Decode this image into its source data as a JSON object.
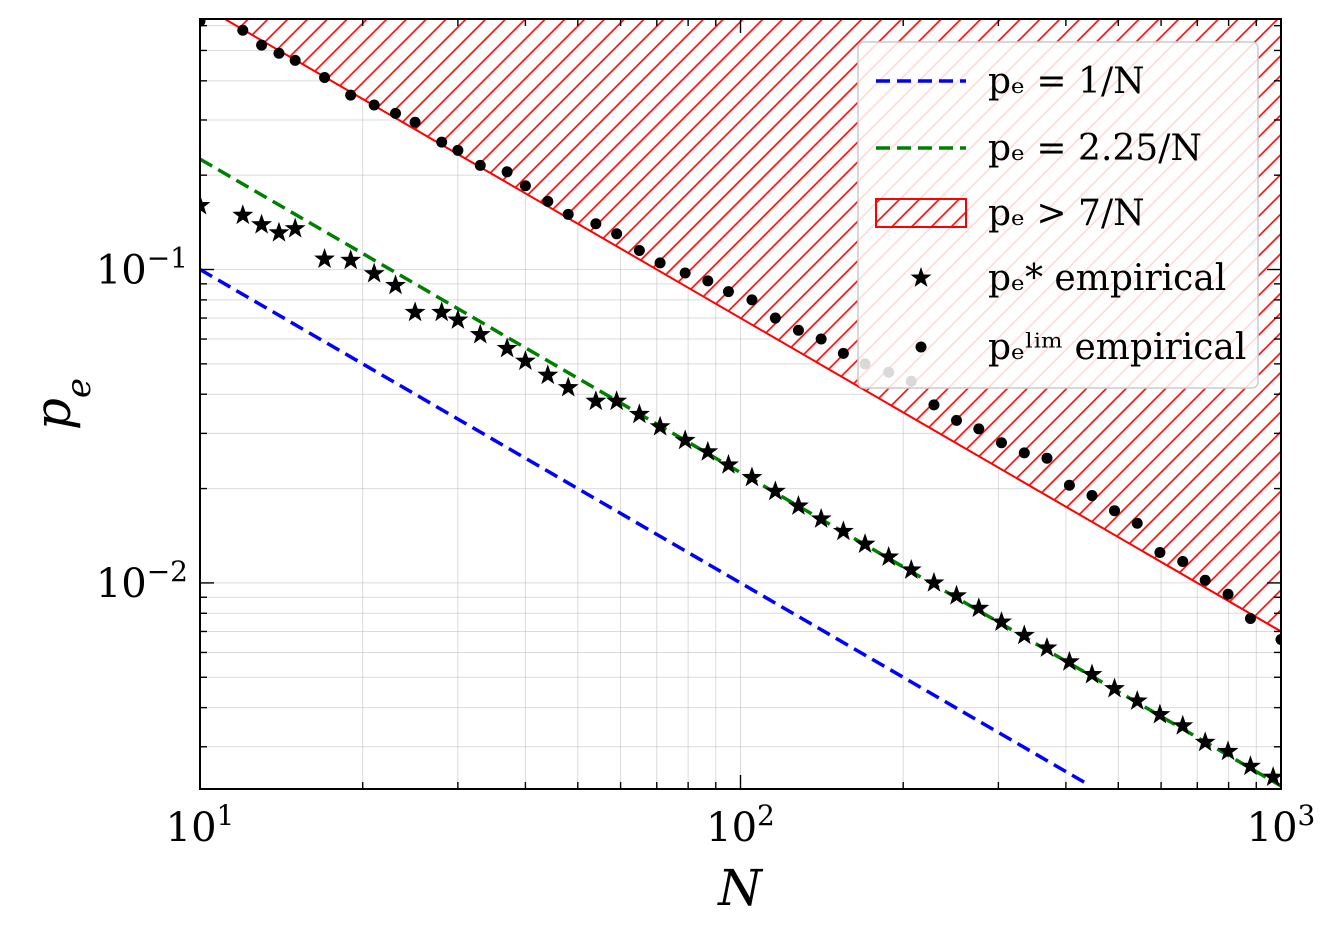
{
  "chart_data": {
    "type": "scatter",
    "scale": {
      "x": "log",
      "y": "log"
    },
    "xlabel": "N",
    "ylabel": "p_e",
    "xlim": [
      10,
      1000
    ],
    "ylim": [
      0.0022,
      0.63
    ],
    "grid": true,
    "legend_position": "top-right",
    "x_ticks": [
      {
        "value": 10,
        "base": "10",
        "exp": "1"
      },
      {
        "value": 100,
        "base": "10",
        "exp": "2"
      },
      {
        "value": 1000,
        "base": "10",
        "exp": "3"
      }
    ],
    "y_ticks": [
      {
        "value": 0.1,
        "base": "10",
        "exp": "−1"
      },
      {
        "value": 0.01,
        "base": "10",
        "exp": "−2"
      }
    ],
    "lines": [
      {
        "name": "p_e = 1/N",
        "label": "pₑ = 1/N",
        "coef": 1,
        "color": "#0000ff",
        "style": "dashed",
        "x_max": 440
      },
      {
        "name": "p_e = 2.25/N",
        "label": "pₑ = 2.25/N",
        "coef": 2.25,
        "color": "#008000",
        "style": "dashed"
      }
    ],
    "region": {
      "name": "p_e > 7/N",
      "label": "pₑ > 7/N",
      "coef": 7,
      "color": "#ff0000",
      "hatch": "diagonal"
    },
    "series": [
      {
        "name": "p_e^* empirical",
        "label": "pₑ* empirical",
        "marker": "star",
        "color": "#000000",
        "x": [
          10,
          12,
          13,
          14,
          15,
          17,
          19,
          21,
          23,
          25,
          28,
          30,
          33,
          37,
          40,
          44,
          48,
          54,
          59,
          65,
          71,
          79,
          87,
          95,
          105,
          116,
          128,
          141,
          155,
          170,
          188,
          207,
          228,
          251,
          276,
          304,
          335,
          369,
          406,
          447,
          492,
          542,
          597,
          658,
          724,
          798,
          878,
          967
        ],
        "y": [
          0.16,
          0.149,
          0.139,
          0.131,
          0.135,
          0.108,
          0.107,
          0.097,
          0.089,
          0.073,
          0.073,
          0.069,
          0.062,
          0.056,
          0.051,
          0.046,
          0.042,
          0.038,
          0.038,
          0.0345,
          0.0315,
          0.0285,
          0.0262,
          0.0238,
          0.0217,
          0.0196,
          0.0176,
          0.016,
          0.0146,
          0.0133,
          0.0121,
          0.011,
          0.01,
          0.0091,
          0.0083,
          0.0075,
          0.0068,
          0.0062,
          0.0056,
          0.0051,
          0.0046,
          0.0042,
          0.0038,
          0.0035,
          0.0031,
          0.0029,
          0.0026,
          0.0024
        ]
      },
      {
        "name": "p_e^lim empirical",
        "label": "pₑˡⁱᵐ empirical",
        "marker": "circle",
        "color": "#000000",
        "x": [
          10,
          12,
          13,
          14,
          15,
          17,
          19,
          21,
          23,
          25,
          28,
          30,
          33,
          37,
          40,
          44,
          48,
          54,
          59,
          65,
          71,
          79,
          87,
          95,
          105,
          116,
          128,
          141,
          155,
          170,
          188,
          207,
          228,
          251,
          276,
          304,
          335,
          369,
          406,
          447,
          492,
          542,
          597,
          658,
          724,
          798,
          878,
          1000
        ],
        "y": [
          0.62,
          0.58,
          0.52,
          0.49,
          0.465,
          0.41,
          0.36,
          0.335,
          0.315,
          0.295,
          0.255,
          0.24,
          0.215,
          0.205,
          0.185,
          0.165,
          0.15,
          0.14,
          0.13,
          0.115,
          0.105,
          0.0975,
          0.092,
          0.085,
          0.08,
          0.07,
          0.064,
          0.06,
          0.054,
          0.05,
          0.047,
          0.044,
          0.037,
          0.033,
          0.031,
          0.028,
          0.026,
          0.025,
          0.0205,
          0.019,
          0.017,
          0.0155,
          0.0125,
          0.0117,
          0.0102,
          0.0092,
          0.0077,
          0.0066
        ]
      }
    ]
  }
}
